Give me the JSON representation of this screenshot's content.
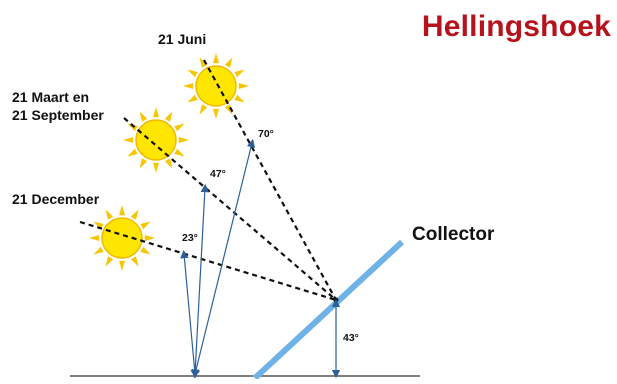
{
  "title": "Hellingshoek",
  "sun_labels": {
    "june": "21 Juni",
    "march_line1": "21 Maart en",
    "march_line2": "21 September",
    "december": "21 December"
  },
  "angles": {
    "june": "70°",
    "march": "47°",
    "december": "23°",
    "collector": "43°"
  },
  "collector_label": "Collector",
  "colors": {
    "title": "#b5121b",
    "collector": "#6fb3e6",
    "arrow": "#2d5f9a",
    "sun_fill": "#ffe600",
    "sun_ray": "#f6c700"
  }
}
